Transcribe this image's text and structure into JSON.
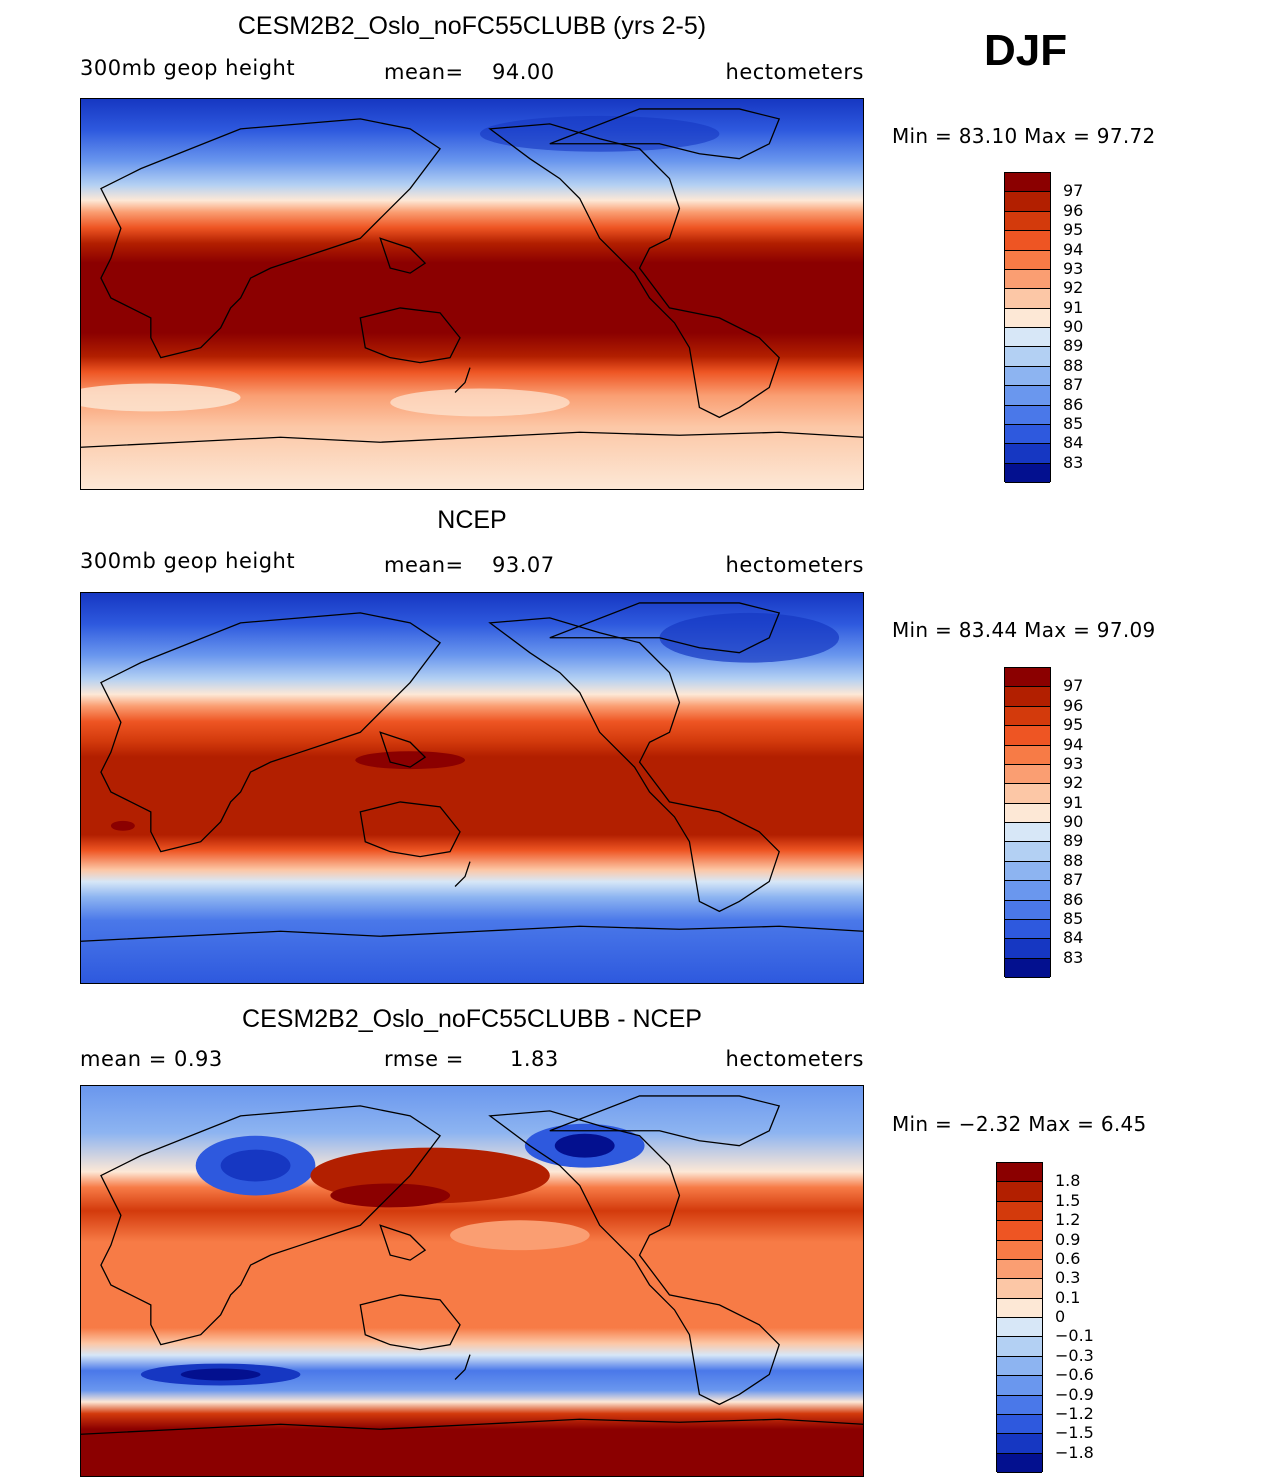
{
  "season": "DJF",
  "panels": [
    {
      "id": "model",
      "title": "CESM2B2_Oslo_noFC55CLUBB (yrs 2-5)",
      "left_text": "300mb  geop  height",
      "center_label": "mean=",
      "center_value": "94.00",
      "units": "hectometers",
      "minmax": "Min =   83.10  Max =   97.72",
      "colorbar": {
        "colors": [
          "#8b0000",
          "#b21f00",
          "#d33a0c",
          "#ee5523",
          "#f77b46",
          "#fa9e72",
          "#fcc7a6",
          "#fde8d6",
          "#d7e7f7",
          "#b3d0f3",
          "#8db4f1",
          "#6a97ee",
          "#4a78e9",
          "#2e59de",
          "#1637c2",
          "#03108f"
        ],
        "labels": [
          "97",
          "96",
          "95",
          "94",
          "93",
          "92",
          "91",
          "90",
          "89",
          "88",
          "87",
          "86",
          "85",
          "84",
          "83"
        ]
      }
    },
    {
      "id": "obs",
      "title": "NCEP",
      "left_text": "300mb  geop  height",
      "center_label": "mean=",
      "center_value": "93.07",
      "units": "hectometers",
      "minmax": "Min =   83.44  Max =   97.09",
      "colorbar": {
        "colors": [
          "#8b0000",
          "#b21f00",
          "#d33a0c",
          "#ee5523",
          "#f77b46",
          "#fa9e72",
          "#fcc7a6",
          "#fde8d6",
          "#d7e7f7",
          "#b3d0f3",
          "#8db4f1",
          "#6a97ee",
          "#4a78e9",
          "#2e59de",
          "#1637c2",
          "#03108f"
        ],
        "labels": [
          "97",
          "96",
          "95",
          "94",
          "93",
          "92",
          "91",
          "90",
          "89",
          "88",
          "87",
          "86",
          "85",
          "84",
          "83"
        ]
      }
    },
    {
      "id": "diff",
      "title": "CESM2B2_Oslo_noFC55CLUBB - NCEP",
      "left_text": "mean =      0.93",
      "center_label": "rmse =",
      "center_value": "1.83",
      "units": "hectometers",
      "minmax": "Min =   −2.32  Max =     6.45",
      "colorbar": {
        "colors": [
          "#8b0000",
          "#b21f00",
          "#d33a0c",
          "#ee5523",
          "#f77b46",
          "#fa9e72",
          "#fcc7a6",
          "#fde8d6",
          "#d7e7f7",
          "#b3d0f3",
          "#8db4f1",
          "#6a97ee",
          "#4a78e9",
          "#2e59de",
          "#1637c2",
          "#03108f"
        ],
        "labels": [
          "1.8",
          "1.5",
          "1.2",
          "0.9",
          "0.6",
          "0.3",
          "0.1",
          "0",
          "−0.1",
          "−0.3",
          "−0.6",
          "−0.9",
          "−1.2",
          "−1.5",
          "−1.8"
        ]
      }
    }
  ]
}
